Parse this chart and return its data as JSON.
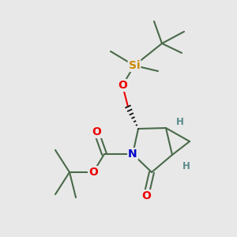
{
  "bg_color": "#e8e8e8",
  "bond_color": "#4a6a4a",
  "bond_width": 1.5,
  "atom_colors": {
    "O": "#ee0000",
    "N": "#0000cc",
    "Si": "#cc8800",
    "H": "#5a8a8a",
    "C": "#4a6a4a"
  },
  "font_size_atom": 10,
  "font_size_H": 8.5
}
